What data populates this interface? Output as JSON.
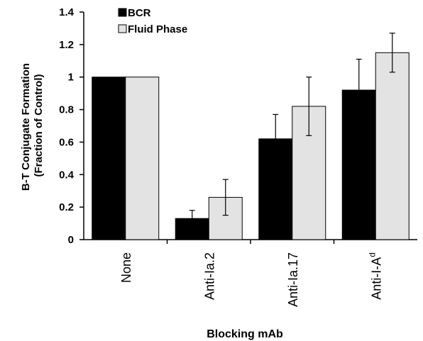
{
  "chart_data": {
    "type": "bar",
    "ylabel": [
      "B-T Conjugate Formation",
      "(Fraction of Control)"
    ],
    "xlabel": "Blocking mAb",
    "ylim": [
      0,
      1.4
    ],
    "yticks": [
      "0",
      "0.2",
      "0.4",
      "0.6",
      "0.8",
      "1",
      "1.2",
      "1.4"
    ],
    "categories": [
      {
        "label": "None",
        "sup": ""
      },
      {
        "label": "Anti-Ia.2",
        "sup": ""
      },
      {
        "label": "Anti-Ia.17",
        "sup": ""
      },
      {
        "label": "Anti-I-A",
        "sup": "d"
      }
    ],
    "series": [
      {
        "name": "BCR",
        "color": "#000000",
        "values": [
          1.0,
          0.13,
          0.62,
          0.92
        ],
        "errors": [
          0,
          0.05,
          0.15,
          0.19
        ]
      },
      {
        "name": "Fluid Phase",
        "color": "#e3e3e3",
        "values": [
          1.0,
          0.26,
          0.82,
          1.15
        ],
        "errors": [
          0,
          0.11,
          0.18,
          0.12
        ]
      }
    ],
    "legend": "top-left",
    "grid": false
  }
}
